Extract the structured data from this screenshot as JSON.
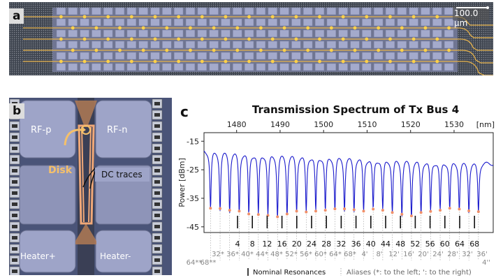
{
  "panel_a": {
    "label": "a",
    "scale_bar": "100.0 µm"
  },
  "panel_b": {
    "label": "b",
    "pads": [
      "RF-p",
      "RF-n",
      "Heater+",
      "Heater-"
    ],
    "annotations": {
      "disk": "Disk",
      "dc_traces": "DC traces"
    },
    "colors": {
      "pad": "#9ea4c8",
      "disk": "#f5c06a",
      "trace": "#f0a878",
      "background": "#4a5478"
    }
  },
  "panel_c": {
    "label": "c",
    "legend": {
      "nominal": "Nominal Resonances",
      "aliases": "Aliases (*: to the left; ': to the right)"
    }
  },
  "chart_data": {
    "type": "line",
    "title": "Transmission Spectrum of Tx Bus 4",
    "ylabel": "Power [dBm]",
    "x_top_unit": "[nm]",
    "xlim": [
      1472.5,
      1539
    ],
    "ylim": [
      -47,
      -12
    ],
    "yticks": [
      -15,
      -25,
      -35,
      -45
    ],
    "xticks_top": [
      1480,
      1490,
      1500,
      1510,
      1520,
      1530
    ],
    "baseline_start_dbm": -18.2,
    "baseline_end_dbm": -22.8,
    "series": [
      {
        "color": "#1a1acc",
        "resonance_wavelengths_nm": [
          1474.0,
          1476.2,
          1478.4,
          1480.6,
          1482.8,
          1485.0,
          1487.2,
          1489.4,
          1491.6,
          1493.8,
          1496.0,
          1498.2,
          1500.4,
          1502.6,
          1504.8,
          1507.0,
          1509.2,
          1511.4,
          1513.6,
          1515.8,
          1518.0,
          1520.2,
          1522.4,
          1524.6,
          1526.8,
          1529.0,
          1531.2,
          1533.4,
          1535.6
        ],
        "resonance_dip_dbm": [
          -38.5,
          -38.6,
          -39.2,
          -39.5,
          -40.5,
          -40.7,
          -41,
          -41.5,
          -40.5,
          -39.5,
          -39.8,
          -39.5,
          -39.2,
          -38.7,
          -38.7,
          -39,
          -39.5,
          -38.8,
          -39.2,
          -40,
          -40.6,
          -41.2,
          -40,
          -39.6,
          -39.2,
          -38.5,
          -38.8,
          -39.4,
          -39.7
        ]
      }
    ],
    "nominal_resonances": [
      "4",
      "8",
      "12",
      "16",
      "20",
      "24",
      "28",
      "32",
      "36",
      "40",
      "44",
      "48",
      "52",
      "56",
      "60",
      "64",
      "68"
    ],
    "nominal_wavelengths_nm": [
      1482.8,
      1487.2,
      1491.6,
      1496.0,
      1500.4,
      1504.8,
      1509.2,
      1513.6,
      1518.0,
      1522.4,
      1526.8,
      1531.2,
      1535.6,
      1505.0,
      1510.0,
      1515.0,
      1520.0
    ],
    "alias_row1": [
      "32*",
      "36*",
      "40*",
      "44*",
      "48*",
      "52*",
      "56*",
      "60*",
      "64*",
      "68*",
      "4'",
      "8'",
      "12'",
      "16'",
      "20'",
      "24'",
      "28'",
      "32'",
      "36'"
    ],
    "alias_row2": [
      "64**",
      "68**",
      "4''"
    ]
  }
}
